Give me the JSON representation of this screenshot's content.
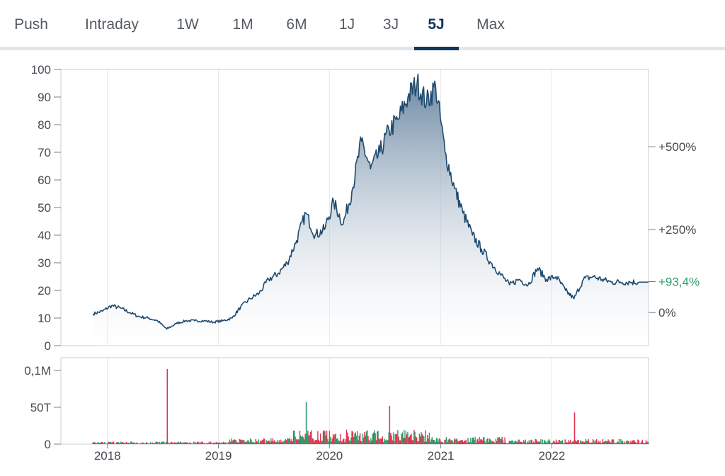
{
  "tabs": [
    {
      "label": "Push",
      "active": false
    },
    {
      "label": "Intraday",
      "active": false
    },
    {
      "label": "1W",
      "active": false
    },
    {
      "label": "1M",
      "active": false
    },
    {
      "label": "6M",
      "active": false
    },
    {
      "label": "1J",
      "active": false
    },
    {
      "label": "3J",
      "active": false
    },
    {
      "label": "5J",
      "active": true
    },
    {
      "label": "Max",
      "active": false
    }
  ],
  "colors": {
    "price_line": "#1f4a6e",
    "area_top": "#5f7e9c",
    "volume_up": "#2e9c6a",
    "volume_down": "#e0334f",
    "percent_current": "#2e9c6a",
    "active_tab": "#12365c"
  },
  "chart_data": [
    {
      "type": "area",
      "title": "",
      "xlabel": "",
      "ylabel": "",
      "x_ticks": [
        "2018",
        "2019",
        "2020",
        "2021",
        "2022"
      ],
      "y_ticks": [
        0,
        10,
        20,
        30,
        40,
        50,
        60,
        70,
        80,
        90,
        100
      ],
      "ylim": [
        0,
        100
      ],
      "secondary_axis_labels": [
        "+500%",
        "+250%",
        "+93,4%",
        "0%"
      ],
      "secondary_axis_values": [
        500,
        250,
        93.4,
        0
      ],
      "baseline_price": 12.0,
      "current_change_label": "+93,4%",
      "grid": true,
      "series": [
        {
          "x": [
            "2017-11",
            "2017-12",
            "2018-01",
            "2018-02",
            "2018-03",
            "2018-04",
            "2018-05",
            "2018-06",
            "2018-07",
            "2018-08",
            "2018-09",
            "2018-10",
            "2018-11",
            "2018-12",
            "2019-01",
            "2019-02",
            "2019-03",
            "2019-04",
            "2019-05",
            "2019-06",
            "2019-07",
            "2019-08",
            "2019-09",
            "2019-10",
            "2019-11",
            "2019-12",
            "2020-01",
            "2020-02",
            "2020-03",
            "2020-04",
            "2020-05",
            "2020-06",
            "2020-07",
            "2020-08",
            "2020-09",
            "2020-10",
            "2020-11",
            "2020-12",
            "2021-01",
            "2021-02",
            "2021-03",
            "2021-04",
            "2021-05",
            "2021-06",
            "2021-07",
            "2021-08",
            "2021-09",
            "2021-10",
            "2021-11",
            "2021-12",
            "2022-01",
            "2022-02",
            "2022-03",
            "2022-04",
            "2022-05",
            "2022-06",
            "2022-07",
            "2022-08",
            "2022-09",
            "2022-10"
          ],
          "y": [
            11.5,
            12.5,
            14.5,
            13.5,
            12,
            10.5,
            10,
            9,
            6,
            8,
            9,
            9,
            9,
            8.5,
            9,
            10,
            14,
            17,
            19,
            24,
            26,
            30,
            38,
            48,
            40,
            42,
            52,
            44,
            56,
            74,
            64,
            70,
            78,
            82,
            90,
            95,
            88,
            94,
            70,
            57,
            48,
            40,
            35,
            30,
            26,
            22,
            24,
            22,
            28,
            24,
            25,
            20,
            17,
            24,
            25,
            24,
            23,
            23,
            23,
            23
          ]
        }
      ]
    },
    {
      "type": "bar",
      "title": "",
      "y_ticks": [
        "0",
        "50T",
        "0,1M"
      ],
      "y_tick_values": [
        0,
        50000,
        100000
      ],
      "ylim": [
        0,
        110000
      ],
      "notable_bars": [
        {
          "x": "2018-07",
          "value": 102000,
          "direction": "down"
        },
        {
          "x": "2019-10",
          "value": 57000,
          "direction": "up"
        },
        {
          "x": "2020-07",
          "value": 52000,
          "direction": "down"
        },
        {
          "x": "2022-03",
          "value": 43000,
          "direction": "down"
        }
      ]
    }
  ]
}
